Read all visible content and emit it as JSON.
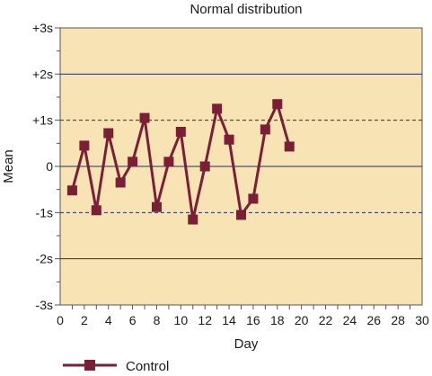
{
  "chart_data": {
    "type": "line",
    "title": "Normal distribution",
    "xlabel": "Day",
    "ylabel": "Mean",
    "xlim": [
      0,
      30
    ],
    "ylim": [
      -3,
      3
    ],
    "x_ticks": [
      0,
      2,
      4,
      6,
      8,
      10,
      12,
      14,
      16,
      18,
      20,
      22,
      24,
      26,
      28,
      30
    ],
    "x_tick_labels": [
      "0",
      "2",
      "4",
      "6",
      "8",
      "10",
      "12",
      "14",
      "16",
      "18",
      "20",
      "22",
      "24",
      "26",
      "28",
      "30"
    ],
    "y_ticks": [
      3,
      2,
      1,
      0,
      -1,
      -2,
      -3
    ],
    "y_tick_labels": [
      "+3s",
      "+2s",
      "+1s",
      "0",
      "-1s",
      "-2s",
      "-3s"
    ],
    "grid": {
      "solid_lines": [
        2,
        0,
        -2
      ],
      "dashed_lines": [
        1,
        -1
      ]
    },
    "legend": {
      "position": "bottom-left"
    },
    "colors": {
      "plot_background": "#f7e3b3",
      "series": "#7a1f35",
      "grid": "#1f2f66",
      "frame": "#555555"
    },
    "series": [
      {
        "name": "Control",
        "x": [
          1,
          2,
          3,
          4,
          5,
          6,
          7,
          8,
          9,
          10,
          11,
          12,
          13,
          14,
          15,
          16,
          17,
          18,
          19
        ],
        "y": [
          -0.52,
          0.45,
          -0.95,
          0.72,
          -0.35,
          0.1,
          1.05,
          -0.88,
          0.1,
          0.75,
          -1.15,
          0.0,
          1.25,
          0.58,
          -1.05,
          -0.7,
          0.8,
          1.35,
          0.43
        ]
      }
    ]
  }
}
